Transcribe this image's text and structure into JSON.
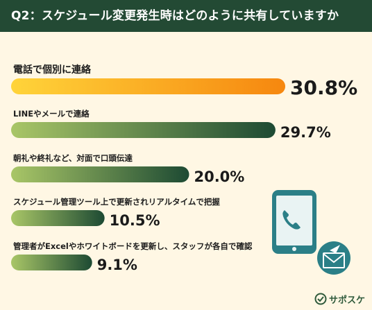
{
  "header": {
    "title": "Q2：スケジュール変更発生時はどのように共有していますか"
  },
  "brand": {
    "name": "サポスケ"
  },
  "icons": [
    "smartphone-phone-icon",
    "mail-envelope-icon",
    "brand-check-icon"
  ],
  "colors": {
    "header_bg": "#234a34",
    "background": "#fff7e4",
    "highlight_bar_start": "#ffd43a",
    "highlight_bar_end": "#f6870f",
    "bar_start": "#a9c667",
    "bar_end": "#1d4a33",
    "icon_fill": "#2b7f87"
  },
  "chart_data": {
    "type": "bar",
    "orientation": "horizontal",
    "categories": [
      "電話で個別に連絡",
      "LINEやメールで連絡",
      "朝礼や終礼など、対面で口頭伝達",
      "スケジュール管理ツール上で更新されリアルタイムで把握",
      "管理者がExcelやホワイトボードを更新し、スタッフが各自で確認"
    ],
    "values": [
      30.8,
      29.7,
      20.0,
      10.5,
      9.1
    ],
    "value_labels": [
      "30.8%",
      "29.7%",
      "20.0%",
      "10.5%",
      "9.1%"
    ],
    "highlight_index": 0,
    "unit": "%"
  }
}
